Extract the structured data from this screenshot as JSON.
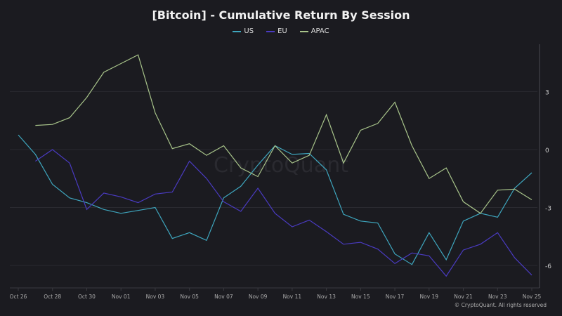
{
  "chart_data": {
    "type": "line",
    "title": "[Bitcoin] - Cumulative Return By Session",
    "xlabel": "",
    "ylabel": "",
    "ylim": [
      -7.16,
      5.45
    ],
    "yticks": [
      3,
      0,
      -3,
      -6
    ],
    "grid": true,
    "legend_position": "top-center",
    "watermark": "CryptoQuant",
    "footer": "© CryptoQuant. All rights reserved",
    "x": [
      "Oct 26",
      "Oct 27",
      "Oct 28",
      "Oct 29",
      "Oct 30",
      "Oct 31",
      "Nov 01",
      "Nov 02",
      "Nov 03",
      "Nov 04",
      "Nov 05",
      "Nov 06",
      "Nov 07",
      "Nov 08",
      "Nov 09",
      "Nov 10",
      "Nov 11",
      "Nov 12",
      "Nov 13",
      "Nov 14",
      "Nov 15",
      "Nov 16",
      "Nov 17",
      "Nov 18",
      "Nov 19",
      "Nov 20",
      "Nov 21",
      "Nov 22",
      "Nov 23",
      "Nov 24",
      "Nov 25"
    ],
    "xtick_labels": [
      "Oct 26",
      "Oct 28",
      "Oct 30",
      "Nov 01",
      "Nov 03",
      "Nov 05",
      "Nov 07",
      "Nov 09",
      "Nov 11",
      "Nov 13",
      "Nov 15",
      "Nov 17",
      "Nov 19",
      "Nov 21",
      "Nov 23",
      "Nov 25"
    ],
    "series": [
      {
        "name": "US",
        "color": "#3ea6be",
        "values": [
          0.76,
          -0.25,
          -1.8,
          -2.5,
          -2.75,
          -3.1,
          -3.3,
          -3.15,
          -3.0,
          -4.6,
          -4.3,
          -4.7,
          -2.5,
          -1.9,
          -0.8,
          0.2,
          -0.25,
          -0.2,
          -1.05,
          -3.35,
          -3.7,
          -3.8,
          -5.4,
          -5.95,
          -4.3,
          -5.7,
          -3.7,
          -3.3,
          -3.5,
          -2.0,
          -1.2
        ]
      },
      {
        "name": "EU",
        "color": "#4a3bc2",
        "values": [
          null,
          -0.6,
          0.0,
          -0.7,
          -3.1,
          -2.25,
          -2.45,
          -2.75,
          -2.3,
          -2.2,
          -0.6,
          -1.5,
          -2.7,
          -3.2,
          -2.0,
          -3.3,
          -4.0,
          -3.65,
          -4.25,
          -4.9,
          -4.8,
          -5.15,
          -5.9,
          -5.35,
          -5.5,
          -6.55,
          -5.2,
          -4.9,
          -4.3,
          -5.6,
          -6.5
        ]
      },
      {
        "name": "APAC",
        "color": "#a8c48a",
        "values": [
          null,
          1.25,
          1.3,
          1.65,
          2.7,
          4.0,
          4.45,
          4.9,
          1.9,
          0.05,
          0.3,
          -0.3,
          0.2,
          -0.95,
          -1.4,
          0.2,
          -0.7,
          -0.3,
          1.8,
          -0.7,
          1.0,
          1.35,
          2.45,
          0.2,
          -1.5,
          -0.95,
          -2.7,
          -3.3,
          -2.1,
          -2.05,
          -2.6
        ]
      }
    ]
  }
}
